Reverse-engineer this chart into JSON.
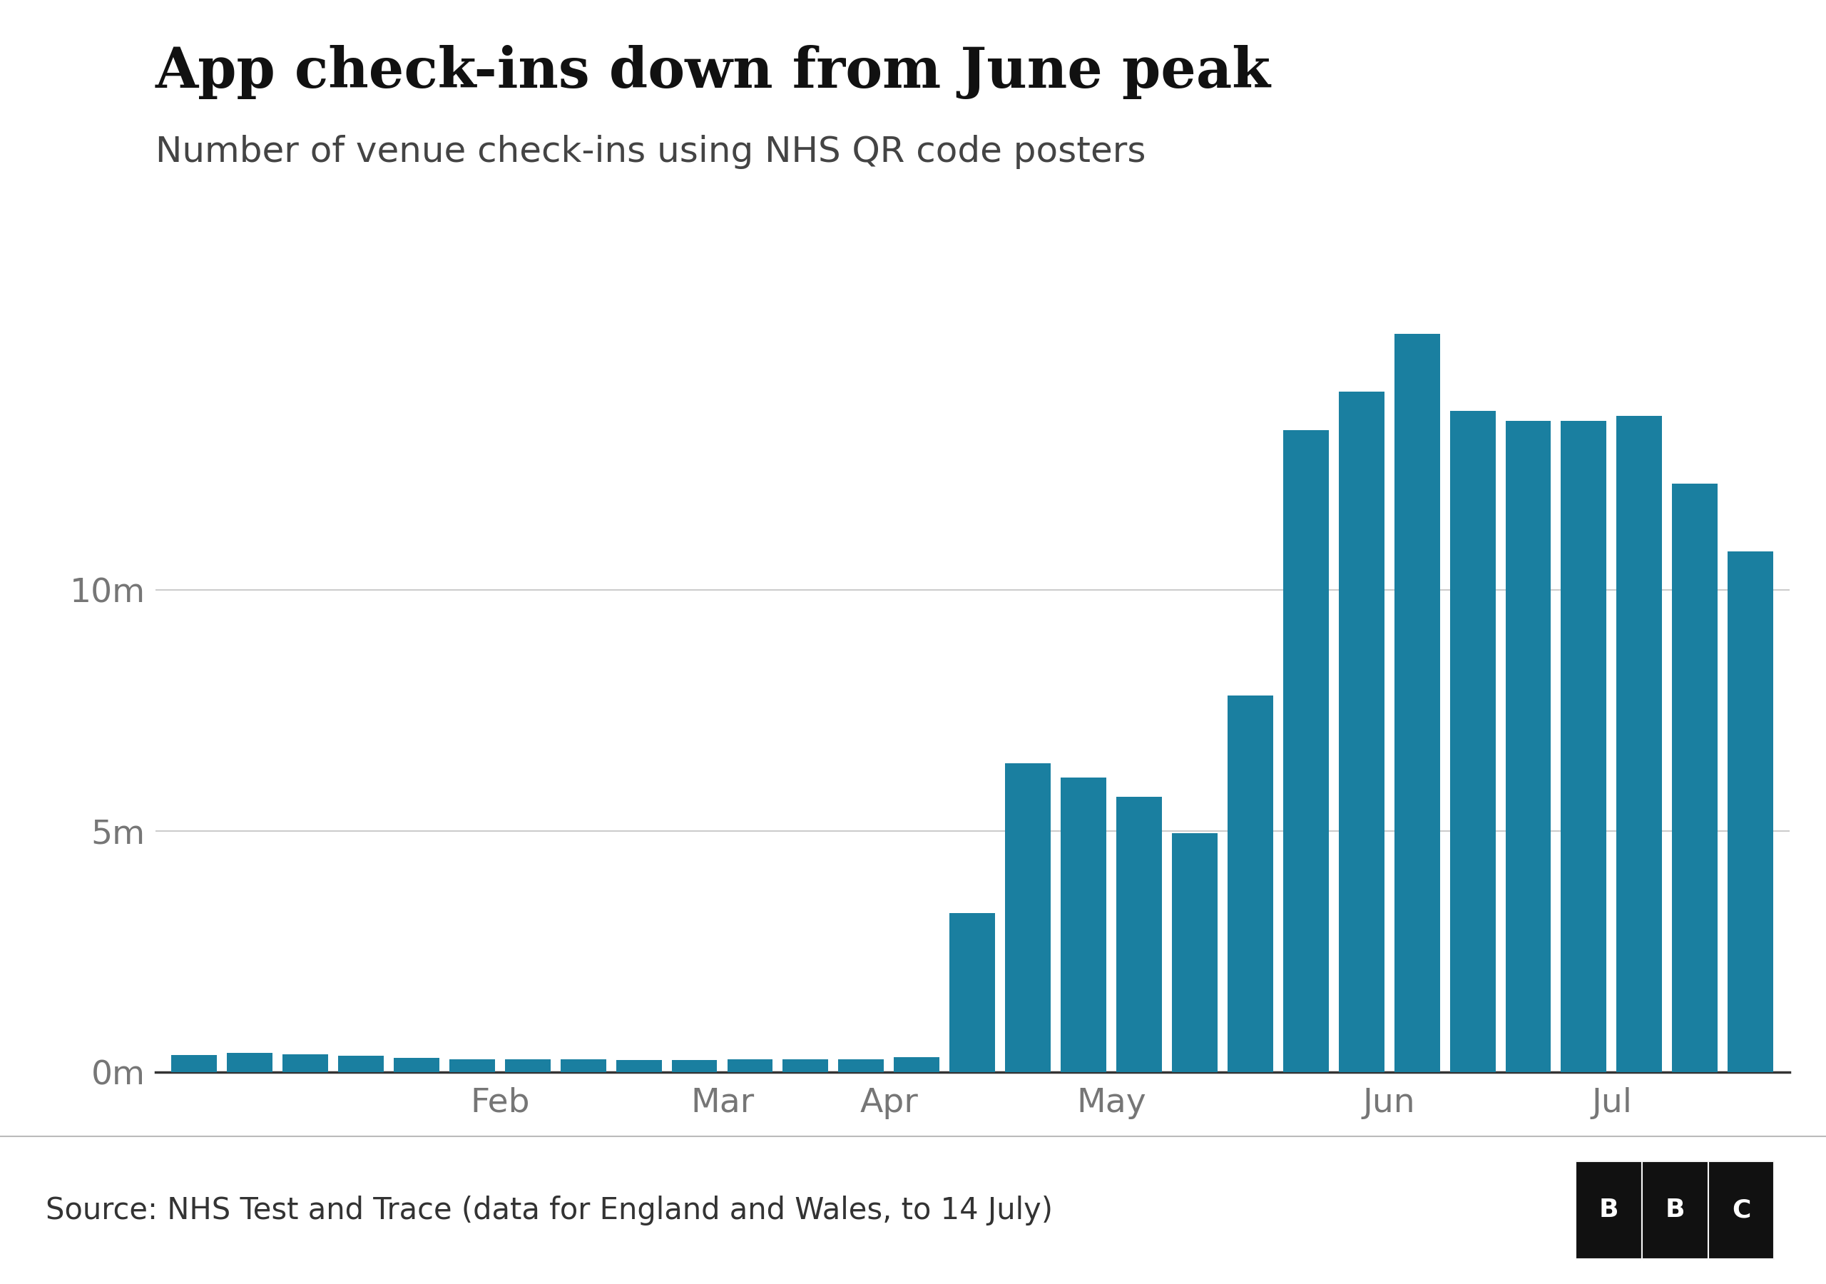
{
  "title": "App check-ins down from June peak",
  "subtitle": "Number of venue check-ins using NHS QR code posters",
  "source": "Source: NHS Test and Trace (data for England and Wales, to 14 July)",
  "bar_color": "#1a7fa0",
  "background_color": "#ffffff",
  "title_fontsize": 56,
  "subtitle_fontsize": 36,
  "source_fontsize": 30,
  "ytick_labels": [
    "0m",
    "5m",
    "10m"
  ],
  "ytick_values": [
    0,
    5000000,
    10000000
  ],
  "ylim": [
    0,
    16500000
  ],
  "values": [
    350000,
    400000,
    370000,
    340000,
    290000,
    270000,
    260000,
    260000,
    250000,
    250000,
    260000,
    260000,
    270000,
    310000,
    3300000,
    6400000,
    6100000,
    5700000,
    4950000,
    7800000,
    13300000,
    14100000,
    15300000,
    13700000,
    13500000,
    13500000,
    13600000,
    12200000,
    10800000
  ],
  "num_bars": 29,
  "jan_bars": 4,
  "feb_bars": 4,
  "mar_bars": 4,
  "apr_bars": 2,
  "month_tick_positions": [
    5.5,
    9.5,
    12.5,
    17.0,
    22.0,
    26.5
  ],
  "month_labels": [
    "Feb",
    "Mar",
    "Apr",
    "May",
    "Jun",
    "Jul"
  ],
  "grid_color": "#cccccc",
  "tick_color": "#767676",
  "bottom_bg": "#f5f5f5",
  "separator_color": "#333333"
}
